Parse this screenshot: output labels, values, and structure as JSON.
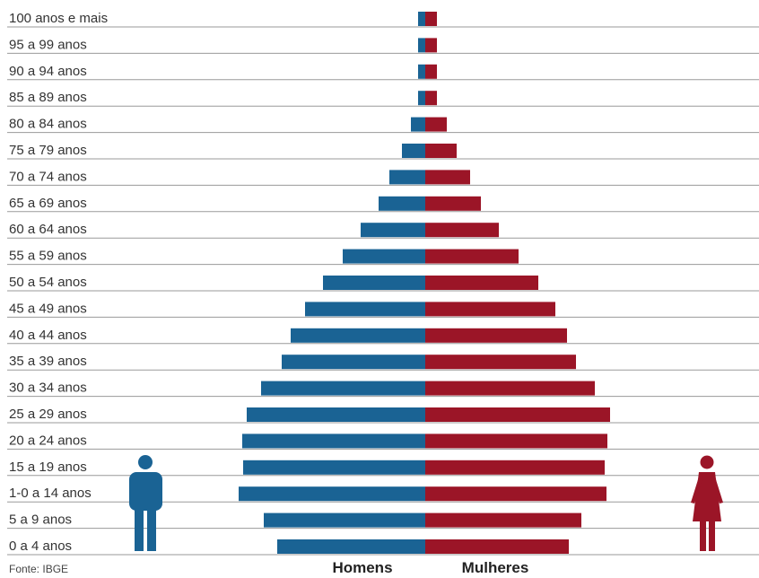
{
  "chart_data": {
    "type": "bar",
    "orientation": "horizontal",
    "subtype": "population-pyramid",
    "categories": [
      "100 anos e mais",
      "95 a 99 anos",
      "90 a 94 anos",
      "85 a 89 anos",
      "80 a 84 anos",
      "75 a 79 anos",
      "70 a 74 anos",
      "65 a 69 anos",
      "60 a 64 anos",
      "55 a 59 anos",
      "50 a 54 anos",
      "45 a 49 anos",
      "40 a 44 anos",
      "35 a 39 anos",
      "30 a 34 anos",
      "25 a 29 anos",
      "20 a 24 anos",
      "15 a 19 anos",
      "1-0 a 14 anos",
      "5 a 9 anos",
      "0 a 4 anos"
    ],
    "series": [
      {
        "name": "Homens",
        "color": "#1a6394",
        "values": [
          0.08,
          0.08,
          0.08,
          0.08,
          0.16,
          0.26,
          0.4,
          0.52,
          0.72,
          0.92,
          1.14,
          1.34,
          1.5,
          1.6,
          1.83,
          1.99,
          2.04,
          2.03,
          2.08,
          1.8,
          1.65
        ]
      },
      {
        "name": "Mulheres",
        "color": "#9b1527",
        "values": [
          0.13,
          0.13,
          0.13,
          0.13,
          0.24,
          0.35,
          0.5,
          0.62,
          0.82,
          1.04,
          1.26,
          1.45,
          1.58,
          1.68,
          1.89,
          2.06,
          2.03,
          2.0,
          2.02,
          1.74,
          1.6
        ]
      }
    ],
    "legend": "bottom",
    "grid": true,
    "source": "Fonte: IBGE"
  },
  "icons": {
    "men": "male-person-icon",
    "women": "female-person-icon"
  }
}
